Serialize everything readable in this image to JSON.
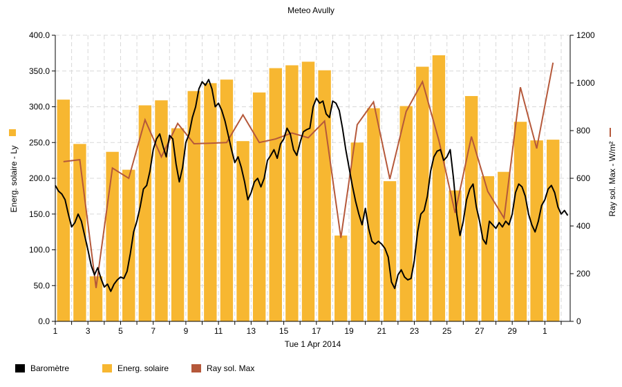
{
  "chart_data": {
    "type": "bar+line",
    "title": "Meteo  Avully",
    "xlabel": "Tue 1 Apr 2014",
    "ylabel_left": "Energ. solaire - Ly",
    "ylabel_right": "Ray sol. Max - W/m²",
    "x_ticks": [
      "1",
      "3",
      "5",
      "7",
      "9",
      "11",
      "13",
      "15",
      "17",
      "19",
      "21",
      "23",
      "25",
      "27",
      "29",
      "1"
    ],
    "y_left": {
      "min": 0,
      "max": 400,
      "ticks": [
        "0.0",
        "50.0",
        "100.0",
        "150.0",
        "200.0",
        "250.0",
        "300.0",
        "350.0",
        "400.0"
      ]
    },
    "y_right": {
      "min": 0,
      "max": 1200,
      "ticks": [
        "0",
        "200",
        "400",
        "600",
        "800",
        "1000",
        "1200"
      ]
    },
    "legend": [
      {
        "name": "Baromètre",
        "color": "#000000"
      },
      {
        "name": "Energ. solaire",
        "color": "#f7b731"
      },
      {
        "name": "Ray sol. Max",
        "color": "#b5583a"
      }
    ],
    "days": [
      1,
      2,
      3,
      4,
      5,
      6,
      7,
      8,
      9,
      10,
      11,
      12,
      13,
      14,
      15,
      16,
      17,
      18,
      19,
      20,
      21,
      22,
      23,
      24,
      25,
      26,
      27,
      28,
      29,
      30,
      31
    ],
    "energ_solaire": [
      310,
      248,
      63,
      237,
      212,
      302,
      309,
      270,
      322,
      333,
      338,
      252,
      320,
      354,
      358,
      363,
      351,
      120,
      250,
      298,
      196,
      301,
      356,
      372,
      183,
      315,
      203,
      209,
      279,
      253,
      254
    ],
    "ray_sol_max": [
      670,
      678,
      140,
      643,
      600,
      845,
      690,
      830,
      745,
      747,
      750,
      866,
      750,
      765,
      790,
      770,
      840,
      350,
      825,
      920,
      597,
      880,
      1005,
      760,
      455,
      775,
      545,
      433,
      982,
      725,
      1085
    ],
    "barometre": [
      [
        0,
        190
      ],
      [
        0.2,
        182
      ],
      [
        0.4,
        178
      ],
      [
        0.6,
        170
      ],
      [
        0.8,
        150
      ],
      [
        1.0,
        132
      ],
      [
        1.2,
        138
      ],
      [
        1.4,
        150
      ],
      [
        1.6,
        140
      ],
      [
        1.8,
        120
      ],
      [
        2.0,
        100
      ],
      [
        2.2,
        78
      ],
      [
        2.4,
        65
      ],
      [
        2.6,
        75
      ],
      [
        2.8,
        60
      ],
      [
        3.0,
        48
      ],
      [
        3.2,
        52
      ],
      [
        3.4,
        42
      ],
      [
        3.6,
        52
      ],
      [
        3.8,
        58
      ],
      [
        4.0,
        62
      ],
      [
        4.2,
        60
      ],
      [
        4.4,
        70
      ],
      [
        4.6,
        95
      ],
      [
        4.8,
        125
      ],
      [
        5.0,
        140
      ],
      [
        5.2,
        160
      ],
      [
        5.4,
        185
      ],
      [
        5.6,
        190
      ],
      [
        5.8,
        210
      ],
      [
        6.0,
        240
      ],
      [
        6.2,
        255
      ],
      [
        6.4,
        262
      ],
      [
        6.6,
        245
      ],
      [
        6.8,
        230
      ],
      [
        7.0,
        260
      ],
      [
        7.2,
        255
      ],
      [
        7.4,
        220
      ],
      [
        7.6,
        195
      ],
      [
        7.8,
        215
      ],
      [
        8.0,
        250
      ],
      [
        8.2,
        262
      ],
      [
        8.4,
        285
      ],
      [
        8.6,
        300
      ],
      [
        8.8,
        325
      ],
      [
        9.0,
        335
      ],
      [
        9.2,
        330
      ],
      [
        9.4,
        338
      ],
      [
        9.6,
        325
      ],
      [
        9.8,
        300
      ],
      [
        10.0,
        305
      ],
      [
        10.2,
        295
      ],
      [
        10.4,
        280
      ],
      [
        10.6,
        260
      ],
      [
        10.8,
        240
      ],
      [
        11.0,
        222
      ],
      [
        11.2,
        230
      ],
      [
        11.4,
        215
      ],
      [
        11.6,
        195
      ],
      [
        11.8,
        170
      ],
      [
        12.0,
        180
      ],
      [
        12.2,
        195
      ],
      [
        12.4,
        200
      ],
      [
        12.6,
        188
      ],
      [
        12.8,
        200
      ],
      [
        13.0,
        225
      ],
      [
        13.2,
        232
      ],
      [
        13.4,
        240
      ],
      [
        13.6,
        228
      ],
      [
        13.8,
        248
      ],
      [
        14.0,
        255
      ],
      [
        14.2,
        270
      ],
      [
        14.4,
        262
      ],
      [
        14.6,
        240
      ],
      [
        14.8,
        232
      ],
      [
        15.0,
        250
      ],
      [
        15.2,
        265
      ],
      [
        15.4,
        268
      ],
      [
        15.6,
        270
      ],
      [
        15.8,
        300
      ],
      [
        16.0,
        312
      ],
      [
        16.2,
        305
      ],
      [
        16.4,
        308
      ],
      [
        16.6,
        290
      ],
      [
        16.8,
        285
      ],
      [
        17.0,
        308
      ],
      [
        17.2,
        305
      ],
      [
        17.4,
        295
      ],
      [
        17.6,
        270
      ],
      [
        17.8,
        240
      ],
      [
        18.0,
        215
      ],
      [
        18.2,
        190
      ],
      [
        18.4,
        168
      ],
      [
        18.6,
        150
      ],
      [
        18.8,
        135
      ],
      [
        19.0,
        158
      ],
      [
        19.2,
        130
      ],
      [
        19.4,
        112
      ],
      [
        19.6,
        108
      ],
      [
        19.8,
        112
      ],
      [
        20.0,
        108
      ],
      [
        20.2,
        102
      ],
      [
        20.4,
        90
      ],
      [
        20.6,
        55
      ],
      [
        20.8,
        46
      ],
      [
        21.0,
        65
      ],
      [
        21.2,
        72
      ],
      [
        21.4,
        62
      ],
      [
        21.6,
        58
      ],
      [
        21.8,
        60
      ],
      [
        22.0,
        85
      ],
      [
        22.2,
        125
      ],
      [
        22.4,
        150
      ],
      [
        22.6,
        155
      ],
      [
        22.8,
        175
      ],
      [
        23.0,
        210
      ],
      [
        23.2,
        230
      ],
      [
        23.4,
        238
      ],
      [
        23.6,
        240
      ],
      [
        23.8,
        225
      ],
      [
        24.0,
        230
      ],
      [
        24.2,
        240
      ],
      [
        24.4,
        200
      ],
      [
        24.6,
        150
      ],
      [
        24.8,
        120
      ],
      [
        25.0,
        140
      ],
      [
        25.2,
        170
      ],
      [
        25.4,
        185
      ],
      [
        25.6,
        192
      ],
      [
        25.8,
        160
      ],
      [
        26.0,
        140
      ],
      [
        26.2,
        115
      ],
      [
        26.4,
        108
      ],
      [
        26.6,
        140
      ],
      [
        26.8,
        135
      ],
      [
        27.0,
        130
      ],
      [
        27.2,
        138
      ],
      [
        27.4,
        132
      ],
      [
        27.6,
        140
      ],
      [
        27.8,
        135
      ],
      [
        28.0,
        150
      ],
      [
        28.2,
        180
      ],
      [
        28.4,
        192
      ],
      [
        28.6,
        188
      ],
      [
        28.8,
        175
      ],
      [
        29.0,
        150
      ],
      [
        29.2,
        135
      ],
      [
        29.4,
        125
      ],
      [
        29.6,
        140
      ],
      [
        29.8,
        162
      ],
      [
        30.0,
        170
      ],
      [
        30.2,
        185
      ],
      [
        30.4,
        190
      ],
      [
        30.6,
        180
      ],
      [
        30.8,
        160
      ],
      [
        31.0,
        150
      ],
      [
        31.2,
        155
      ],
      [
        31.4,
        148
      ]
    ],
    "grid": true,
    "legend_position": "bottom-left"
  }
}
